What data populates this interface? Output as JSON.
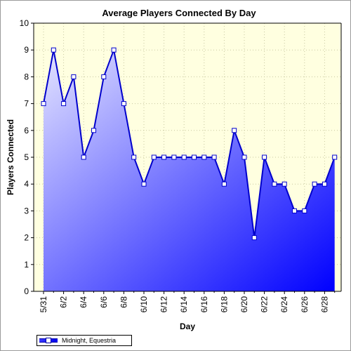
{
  "chart_data": {
    "type": "area",
    "title": "Average Players Connected By Day",
    "xlabel": "Day",
    "ylabel": "Players Connected",
    "ylim": [
      0,
      10
    ],
    "yticks": [
      0,
      1,
      2,
      3,
      4,
      5,
      6,
      7,
      8,
      9,
      10
    ],
    "x_tick_labels": [
      "5/31",
      "6/2",
      "6/4",
      "6/6",
      "6/8",
      "6/10",
      "6/12",
      "6/14",
      "6/16",
      "6/18",
      "6/20",
      "6/22",
      "6/24",
      "6/26",
      "6/28"
    ],
    "categories": [
      "5/31",
      "6/1",
      "6/2",
      "6/3",
      "6/4",
      "6/5",
      "6/6",
      "6/7",
      "6/8",
      "6/9",
      "6/10",
      "6/11",
      "6/12",
      "6/13",
      "6/14",
      "6/15",
      "6/16",
      "6/17",
      "6/18",
      "6/19",
      "6/20",
      "6/21",
      "6/22",
      "6/23",
      "6/24",
      "6/25",
      "6/26",
      "6/27",
      "6/28",
      "6/29"
    ],
    "series": [
      {
        "name": "Midnight, Equestria",
        "values": [
          7,
          9,
          7,
          8,
          5,
          6,
          8,
          9,
          7,
          5,
          4,
          5,
          5,
          5,
          5,
          5,
          5,
          5,
          4,
          6,
          5,
          2,
          5,
          4,
          4,
          3,
          3,
          4,
          4,
          5
        ]
      }
    ],
    "grid": true,
    "legend_position": "bottom-left",
    "colors": {
      "plot_background": "#ffffe0",
      "line": "#0000cc",
      "marker_fill": "#ffffff",
      "area_top": "#e6e6ff",
      "area_bottom": "#0000ff"
    }
  }
}
